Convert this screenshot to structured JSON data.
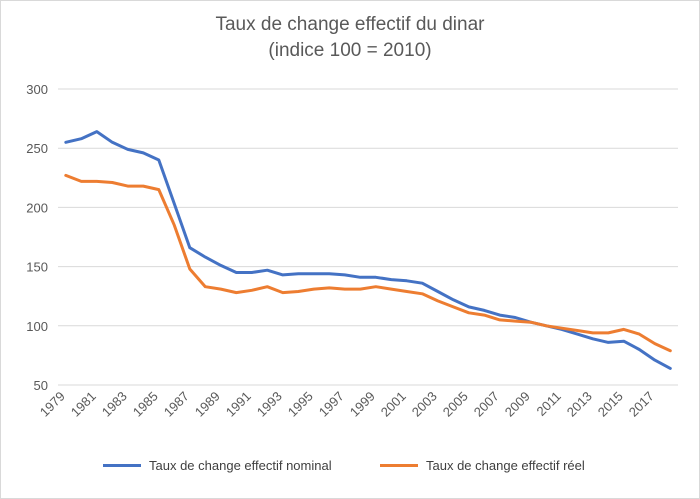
{
  "chart_data": {
    "type": "line",
    "title": "Taux de change effectif du dinar",
    "subtitle": "(indice 100 = 2010)",
    "xlabel": "",
    "ylabel": "",
    "ylim": [
      50,
      300
    ],
    "yticks": [
      50,
      100,
      150,
      200,
      250,
      300
    ],
    "x": [
      1979,
      1980,
      1981,
      1982,
      1983,
      1984,
      1985,
      1986,
      1987,
      1988,
      1989,
      1990,
      1991,
      1992,
      1993,
      1994,
      1995,
      1996,
      1997,
      1998,
      1999,
      2000,
      2001,
      2002,
      2003,
      2004,
      2005,
      2006,
      2007,
      2008,
      2009,
      2010,
      2011,
      2012,
      2013,
      2014,
      2015,
      2016,
      2017,
      2018
    ],
    "xtick_labels": [
      "1979",
      "1981",
      "1983",
      "1985",
      "1987",
      "1989",
      "1991",
      "1993",
      "1995",
      "1997",
      "1999",
      "2001",
      "2003",
      "2005",
      "2007",
      "2009",
      "2011",
      "2013",
      "2015",
      "2017"
    ],
    "grid": "horizontal",
    "legend_position": "bottom",
    "series": [
      {
        "name": "Taux de change effectif nominal",
        "color": "#4472c4",
        "values": [
          255,
          258,
          264,
          255,
          249,
          246,
          240,
          203,
          166,
          158,
          151,
          145,
          145,
          147,
          143,
          144,
          144,
          144,
          143,
          141,
          141,
          139,
          138,
          136,
          129,
          122,
          116,
          113,
          109,
          107,
          103,
          100,
          97,
          93,
          89,
          86,
          87,
          80,
          71,
          64
        ]
      },
      {
        "name": "Taux de change effectif réel",
        "color": "#ed7d31",
        "values": [
          227,
          222,
          222,
          221,
          218,
          218,
          215,
          185,
          148,
          133,
          131,
          128,
          130,
          133,
          128,
          129,
          131,
          132,
          131,
          131,
          133,
          131,
          129,
          127,
          121,
          116,
          111,
          109,
          105,
          104,
          103,
          100,
          98,
          96,
          94,
          94,
          97,
          93,
          85,
          79
        ]
      }
    ]
  }
}
